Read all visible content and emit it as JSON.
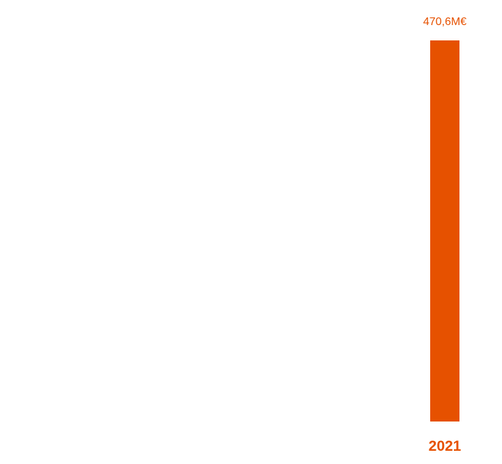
{
  "chart_data": {
    "type": "bar",
    "categories": [
      "2021"
    ],
    "values": [
      470.6
    ],
    "value_labels": [
      "470,6M€"
    ],
    "title": "",
    "xlabel": "",
    "ylabel": "",
    "ylim": [
      0,
      470.6
    ],
    "grid": false,
    "legend": "none",
    "bar_color": "#E65100",
    "label_color": "#E65100"
  }
}
